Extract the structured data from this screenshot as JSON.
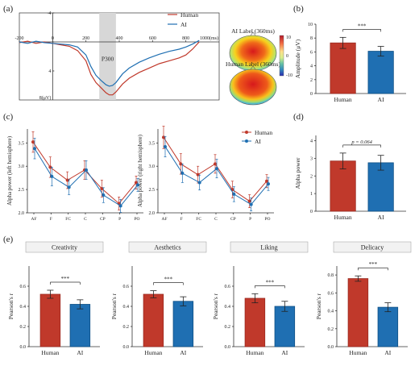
{
  "colors": {
    "human": "#c0392b",
    "ai": "#1f6fb2",
    "human_dark": "#9b2a20",
    "ai_dark": "#0d4f84",
    "shade": "#d7d7d7",
    "ns_label": "#555555"
  },
  "panel_labels": {
    "a": "(a)",
    "b": "(b)",
    "c": "(c)",
    "d": "(d)",
    "e": "(e)"
  },
  "chart_data": [
    {
      "id": "erp",
      "type": "line",
      "title": "",
      "xlabel": "",
      "ylabel": "",
      "x_unit_label": "1000(ms)",
      "y_unit_label": "8(μV)",
      "x_ticks": [
        "-200",
        "0",
        "200",
        "400",
        "600",
        "800"
      ],
      "x_tick_values": [
        -200,
        0,
        200,
        400,
        600,
        800
      ],
      "y_ticks": [
        "-4",
        "0",
        "4"
      ],
      "y_tick_values": [
        -4,
        0,
        4
      ],
      "xlim": [
        -200,
        1000
      ],
      "ylim": [
        -4,
        8
      ],
      "y_inverted": true,
      "shaded_window": [
        280,
        380
      ],
      "shaded_label": "P300",
      "series": [
        {
          "name": "Human",
          "x": [
            -200,
            -150,
            -100,
            -50,
            0,
            50,
            100,
            150,
            200,
            230,
            260,
            290,
            320,
            340,
            360,
            380,
            420,
            460,
            520,
            580,
            640,
            700,
            760,
            800,
            840,
            880
          ],
          "y": [
            0.1,
            -0.1,
            0.2,
            0.0,
            0.2,
            0.4,
            0.6,
            1.2,
            2.6,
            4.5,
            5.6,
            6.3,
            7.0,
            7.3,
            7.3,
            6.9,
            5.8,
            5.0,
            4.2,
            3.6,
            3.0,
            2.6,
            2.2,
            1.8,
            1.0,
            0.0
          ]
        },
        {
          "name": "AI",
          "x": [
            -200,
            -150,
            -100,
            -50,
            0,
            50,
            100,
            150,
            200,
            230,
            260,
            290,
            320,
            340,
            360,
            380,
            420,
            460,
            520,
            580,
            640,
            700,
            760,
            800,
            840,
            880
          ],
          "y": [
            0.0,
            0.2,
            -0.1,
            0.1,
            0.2,
            0.3,
            0.4,
            0.7,
            1.8,
            3.4,
            4.6,
            5.3,
            5.9,
            6.1,
            6.0,
            5.6,
            4.4,
            3.6,
            2.8,
            2.2,
            1.7,
            1.3,
            1.0,
            0.7,
            0.3,
            -0.2
          ]
        }
      ]
    },
    {
      "id": "amplitude",
      "type": "bar",
      "title": "",
      "xlabel": "",
      "ylabel": "Amplitude (μV)",
      "categories": [
        "Human",
        "AI"
      ],
      "values": [
        7.3,
        6.1
      ],
      "errors": [
        0.8,
        0.7
      ],
      "ylim": [
        0,
        10
      ],
      "y_ticks": [
        "0",
        "2",
        "4",
        "6",
        "8",
        "10"
      ],
      "significance": "***"
    },
    {
      "id": "alpha_left",
      "type": "line",
      "title": "",
      "xlabel": "",
      "ylabel": "Alpha power (left hemisphere)",
      "categories": [
        "AF",
        "F",
        "FC",
        "C",
        "CP",
        "P",
        "PO"
      ],
      "ylim": [
        2.0,
        3.8
      ],
      "y_ticks": [
        "2.0",
        "2.5",
        "3.0",
        "3.5"
      ],
      "series": [
        {
          "name": "Human",
          "values": [
            3.52,
            2.98,
            2.7,
            2.92,
            2.52,
            2.2,
            2.65
          ],
          "errors": [
            0.22,
            0.22,
            0.18,
            0.2,
            0.18,
            0.14,
            0.14
          ]
        },
        {
          "name": "AI",
          "values": [
            3.38,
            2.78,
            2.55,
            2.92,
            2.38,
            2.15,
            2.6
          ],
          "errors": [
            0.22,
            0.2,
            0.16,
            0.2,
            0.16,
            0.14,
            0.14
          ]
        }
      ]
    },
    {
      "id": "alpha_right",
      "type": "line",
      "title": "",
      "xlabel": "",
      "ylabel": "Alpha power (right hemisphere)",
      "categories": [
        "AF",
        "F",
        "FC",
        "C",
        "CP",
        "P",
        "PO"
      ],
      "ylim": [
        2.0,
        3.8
      ],
      "y_ticks": [
        "2.0",
        "2.5",
        "3.0",
        "3.5"
      ],
      "series": [
        {
          "name": "Human",
          "values": [
            3.62,
            3.05,
            2.82,
            3.05,
            2.5,
            2.25,
            2.68
          ],
          "errors": [
            0.24,
            0.22,
            0.18,
            0.2,
            0.18,
            0.14,
            0.14
          ]
        },
        {
          "name": "AI",
          "values": [
            3.42,
            2.85,
            2.65,
            2.95,
            2.4,
            2.18,
            2.62
          ],
          "errors": [
            0.22,
            0.2,
            0.16,
            0.2,
            0.16,
            0.14,
            0.14
          ]
        }
      ]
    },
    {
      "id": "alpha_total",
      "type": "bar",
      "title": "",
      "xlabel": "",
      "ylabel": "Alpha power",
      "categories": [
        "Human",
        "AI"
      ],
      "values": [
        2.85,
        2.75
      ],
      "errors": [
        0.45,
        0.42
      ],
      "ylim": [
        0,
        4.3
      ],
      "y_ticks": [
        "0",
        "1",
        "2",
        "3",
        "4"
      ],
      "significance": "p = 0.064"
    },
    {
      "id": "creativity",
      "type": "bar",
      "title": "Creativity",
      "xlabel": "",
      "ylabel": "Pearson's r",
      "categories": [
        "Human",
        "AI"
      ],
      "values": [
        0.52,
        0.42
      ],
      "errors": [
        0.04,
        0.045
      ],
      "ylim": [
        0,
        0.8
      ],
      "y_ticks": [
        "0.0",
        "0.2",
        "0.4",
        "0.6"
      ],
      "significance": "***"
    },
    {
      "id": "aesthetics",
      "type": "bar",
      "title": "Aesthetics",
      "xlabel": "",
      "ylabel": "Pearson's r",
      "categories": [
        "Human",
        "AI"
      ],
      "values": [
        0.52,
        0.45
      ],
      "errors": [
        0.035,
        0.045
      ],
      "ylim": [
        0,
        0.8
      ],
      "y_ticks": [
        "0.0",
        "0.2",
        "0.4",
        "0.6"
      ],
      "significance": "***"
    },
    {
      "id": "liking",
      "type": "bar",
      "title": "Liking",
      "xlabel": "",
      "ylabel": "Pearson's r",
      "categories": [
        "Human",
        "AI"
      ],
      "values": [
        0.48,
        0.4
      ],
      "errors": [
        0.045,
        0.05
      ],
      "ylim": [
        0,
        0.8
      ],
      "y_ticks": [
        "0.0",
        "0.2",
        "0.4",
        "0.6"
      ],
      "significance": "***"
    },
    {
      "id": "delicacy",
      "type": "bar",
      "title": "Delicacy",
      "xlabel": "",
      "ylabel": "Pearson's r",
      "categories": [
        "Human",
        "AI"
      ],
      "values": [
        0.76,
        0.44
      ],
      "errors": [
        0.03,
        0.05
      ],
      "ylim": [
        0,
        0.9
      ],
      "y_ticks": [
        "0.0",
        "0.2",
        "0.4",
        "0.6",
        "0.8"
      ],
      "significance": "***"
    }
  ],
  "topomaps": {
    "ai_label": "AI Label (360ms)",
    "human_label": "Human Label (360ms)",
    "colorbar_ticks": [
      "10",
      "0",
      "-10"
    ]
  }
}
